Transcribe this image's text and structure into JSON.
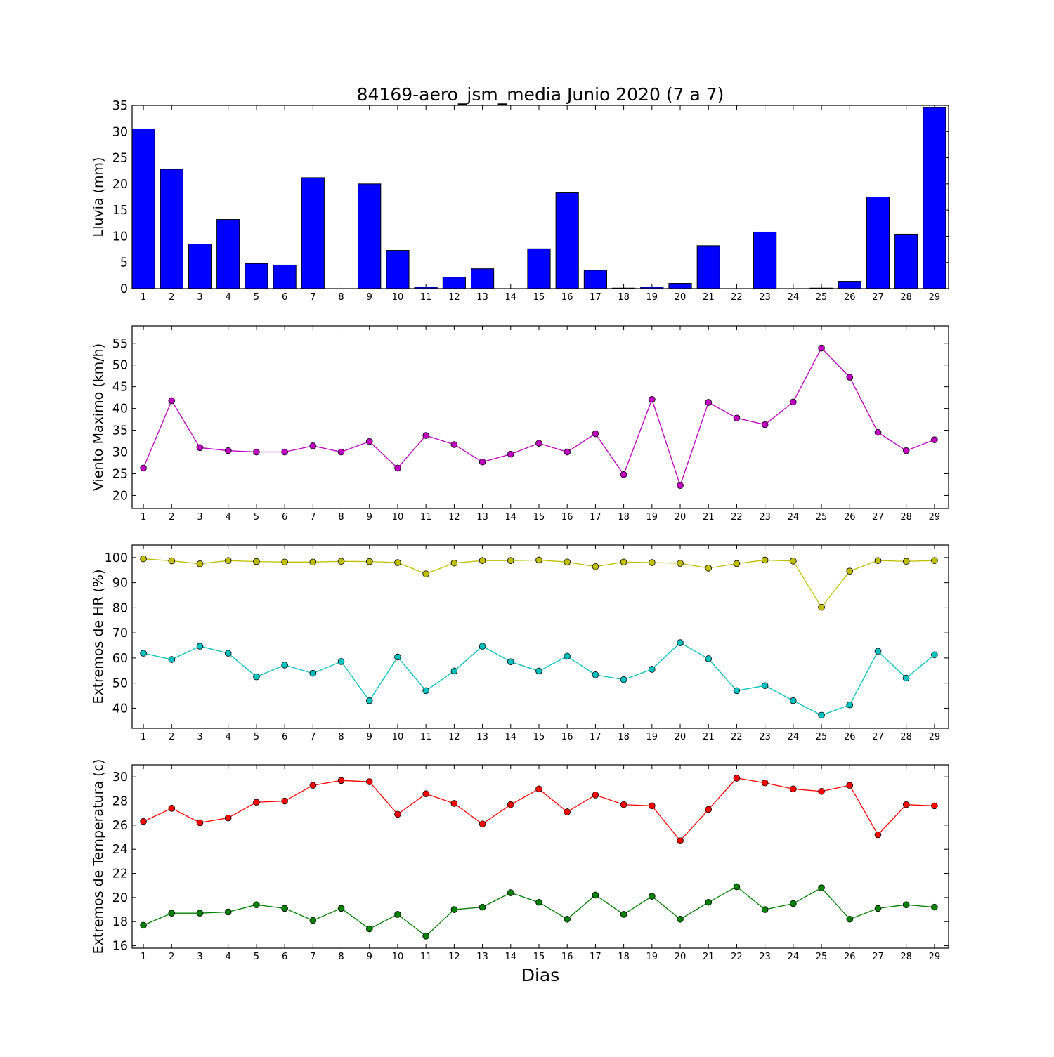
{
  "title": "84169-aero_jsm_media Junio 2020  (7 a 7)",
  "xlabel": "Dias",
  "chart_data": [
    {
      "type": "bar",
      "ylabel": "Lluvia (mm)",
      "ylim": [
        0,
        35
      ],
      "yticks": [
        0,
        5,
        10,
        15,
        20,
        25,
        30,
        35
      ],
      "xlim": [
        0.6,
        29.5
      ],
      "x": [
        1,
        2,
        3,
        4,
        5,
        6,
        7,
        8,
        9,
        10,
        11,
        12,
        13,
        14,
        15,
        16,
        17,
        18,
        19,
        20,
        21,
        22,
        23,
        24,
        25,
        26,
        27,
        28,
        29
      ],
      "series": [
        {
          "color": "#0000ff",
          "values": [
            30.5,
            22.8,
            8.5,
            13.2,
            4.8,
            4.5,
            21.2,
            0,
            20,
            7.3,
            0.3,
            2.2,
            3.8,
            0,
            7.6,
            18.3,
            3.5,
            0.1,
            0.3,
            1.0,
            8.2,
            0,
            10.8,
            0,
            0.1,
            1.4,
            17.5,
            10.4,
            34.6
          ]
        }
      ]
    },
    {
      "type": "line",
      "ylabel": "Viento Maximo (km/h)",
      "ylim": [
        17,
        59
      ],
      "yticks": [
        20,
        25,
        30,
        35,
        40,
        45,
        50,
        55
      ],
      "xlim": [
        0.6,
        29.5
      ],
      "x": [
        1,
        2,
        3,
        4,
        5,
        6,
        7,
        8,
        9,
        10,
        11,
        12,
        13,
        14,
        15,
        16,
        17,
        18,
        19,
        20,
        21,
        22,
        23,
        24,
        25,
        26,
        27,
        28,
        29
      ],
      "series": [
        {
          "color": "#bf00bf",
          "values": [
            26.3,
            41.8,
            31.0,
            30.3,
            30.0,
            30.0,
            31.4,
            30.0,
            32.4,
            26.3,
            33.8,
            31.7,
            27.7,
            29.5,
            32.0,
            30.0,
            34.2,
            24.8,
            42.1,
            22.3,
            41.4,
            37.8,
            36.3,
            41.5,
            53.9,
            47.2,
            34.5,
            30.3,
            32.8
          ]
        }
      ]
    },
    {
      "type": "line",
      "ylabel": "Extremos de HR (%)",
      "ylim": [
        32,
        105
      ],
      "yticks": [
        40,
        50,
        60,
        70,
        80,
        90,
        100
      ],
      "xlim": [
        0.6,
        29.5
      ],
      "x": [
        1,
        2,
        3,
        4,
        5,
        6,
        7,
        8,
        9,
        10,
        11,
        12,
        13,
        14,
        15,
        16,
        17,
        18,
        19,
        20,
        21,
        22,
        23,
        24,
        25,
        26,
        27,
        28,
        29
      ],
      "series": [
        {
          "color": "#bfbf00",
          "values": [
            99.5,
            98.7,
            97.5,
            98.8,
            98.4,
            98.2,
            98.2,
            98.5,
            98.4,
            98.0,
            93.5,
            97.8,
            98.8,
            98.8,
            99.0,
            98.2,
            96.4,
            98.2,
            98.0,
            97.7,
            95.8,
            97.6,
            99.0,
            98.6,
            80.2,
            94.6,
            98.8,
            98.5,
            98.8
          ]
        },
        {
          "color": "#00bfbf",
          "values": [
            61.9,
            59.4,
            64.7,
            61.9,
            52.5,
            57.2,
            53.9,
            58.6,
            43.0,
            60.4,
            47.0,
            54.8,
            64.7,
            58.5,
            54.8,
            60.7,
            53.3,
            51.4,
            55.5,
            66.1,
            59.7,
            47.0,
            49.0,
            43.0,
            37.2,
            41.3,
            62.7,
            52.0,
            61.3
          ]
        }
      ]
    },
    {
      "type": "line",
      "ylabel": "Extremos de Temperatura (c)",
      "ylim": [
        15.8,
        31.0
      ],
      "yticks": [
        16,
        18,
        20,
        22,
        24,
        26,
        28,
        30
      ],
      "xlim": [
        0.6,
        29.5
      ],
      "x": [
        1,
        2,
        3,
        4,
        5,
        6,
        7,
        8,
        9,
        10,
        11,
        12,
        13,
        14,
        15,
        16,
        17,
        18,
        19,
        20,
        21,
        22,
        23,
        24,
        25,
        26,
        27,
        28,
        29
      ],
      "series": [
        {
          "color": "#ff0000",
          "values": [
            26.3,
            27.4,
            26.2,
            26.6,
            27.9,
            28.0,
            29.3,
            29.7,
            29.6,
            26.9,
            28.6,
            27.8,
            26.1,
            27.7,
            29.0,
            27.1,
            28.5,
            27.7,
            27.6,
            24.7,
            27.3,
            29.9,
            29.5,
            29.0,
            28.8,
            29.3,
            25.2,
            27.7,
            27.6
          ]
        },
        {
          "color": "#008000",
          "values": [
            17.7,
            18.7,
            18.7,
            18.8,
            19.4,
            19.1,
            18.1,
            19.1,
            17.4,
            18.6,
            16.8,
            19.0,
            19.2,
            20.4,
            19.6,
            18.2,
            20.2,
            18.6,
            20.1,
            18.2,
            19.6,
            20.9,
            19.0,
            19.5,
            20.8,
            18.2,
            19.1,
            19.4,
            19.2
          ]
        }
      ]
    }
  ]
}
